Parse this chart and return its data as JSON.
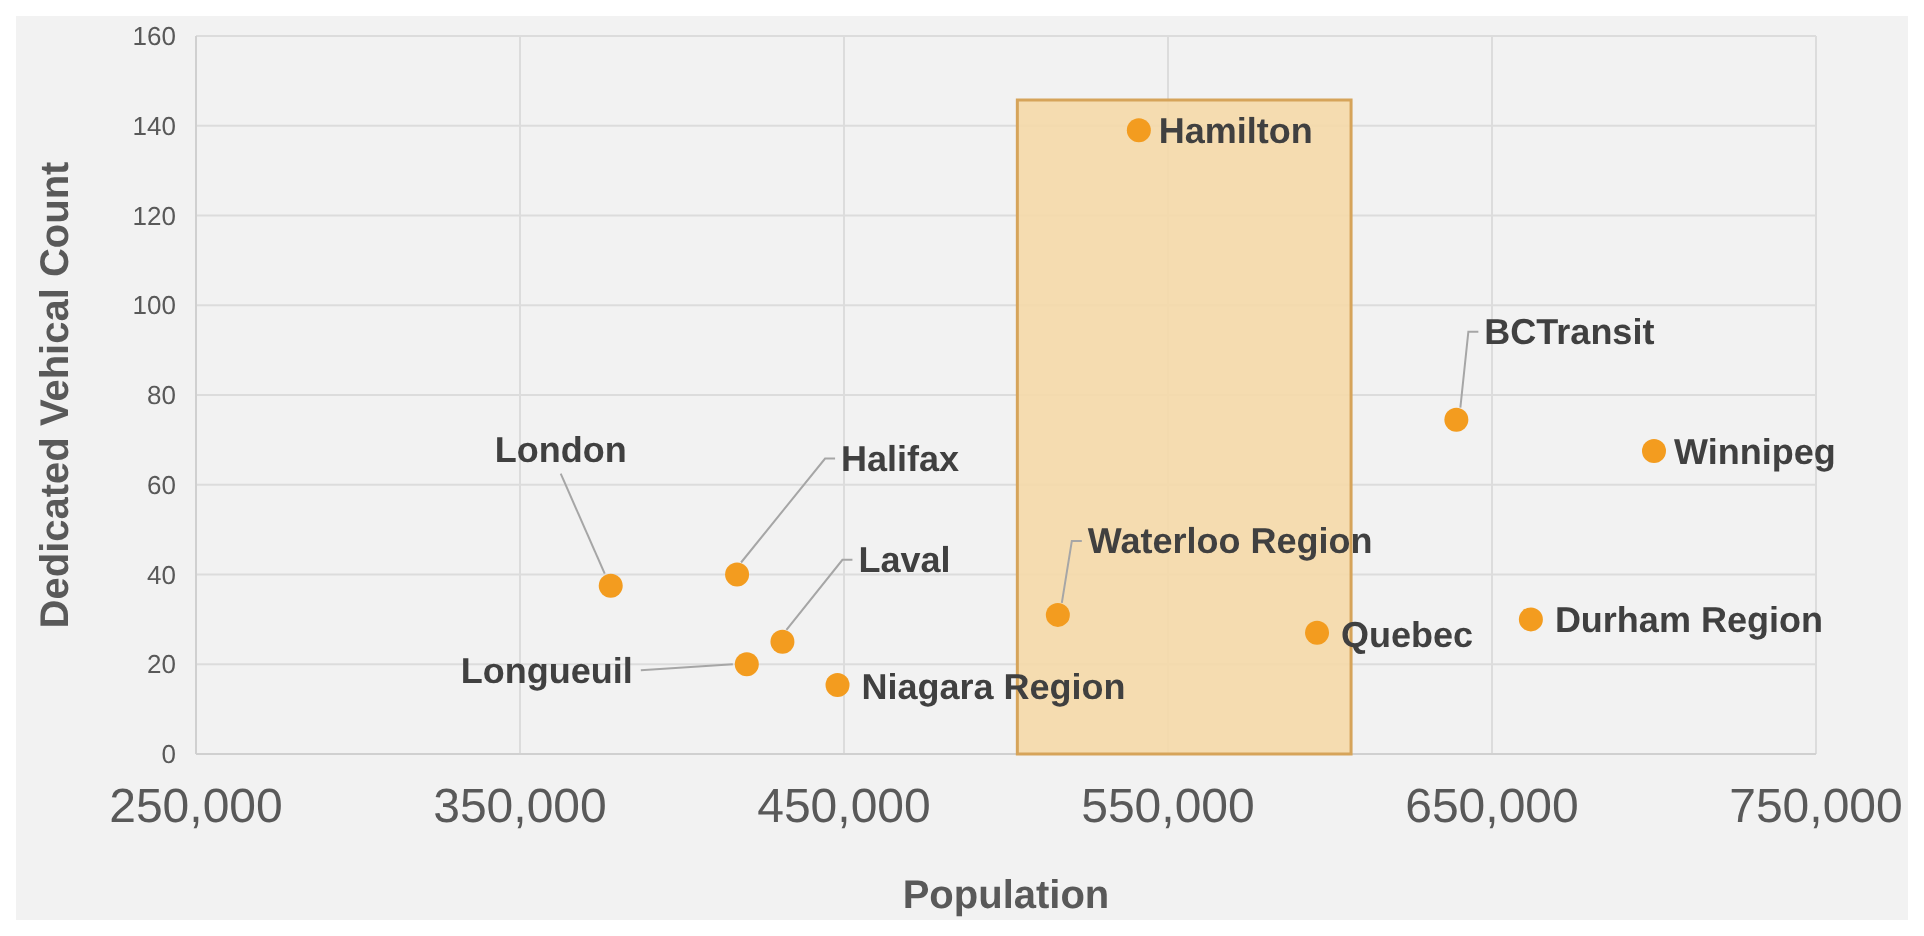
{
  "chart_data": {
    "type": "scatter",
    "xlabel": "Population",
    "ylabel": "Dedicated Vehical Count",
    "x": [
      378000,
      417000,
      431000,
      420000,
      448000,
      516000,
      541000,
      596000,
      639000,
      662000,
      700000
    ],
    "series": [
      {
        "color": "#f39c1f",
        "values": [
          37.5,
          40,
          25,
          20,
          15.4,
          31,
          139,
          27,
          74.5,
          30,
          67.5
        ]
      }
    ],
    "xlim": [
      250000,
      750000
    ],
    "xticks": [
      {
        "value": 250000,
        "label": "250,000"
      },
      {
        "value": 350000,
        "label": "350,000"
      },
      {
        "value": 450000,
        "label": "450,000"
      },
      {
        "value": 550000,
        "label": "550,000"
      },
      {
        "value": 650000,
        "label": "650,000"
      },
      {
        "value": 750000,
        "label": "750,000"
      }
    ],
    "ylim": [
      0,
      160
    ],
    "yticks": [
      0,
      20,
      40,
      60,
      80,
      100,
      120,
      140,
      160
    ],
    "grid": true,
    "marker": "circle",
    "bands": [
      {
        "axis": "x",
        "from": 503500,
        "to": 606500,
        "color": "#f5d9a8"
      }
    ],
    "annotations": [
      {
        "text": "London",
        "x": 378000,
        "y": 37.5
      },
      {
        "text": "Halifax",
        "x": 417000,
        "y": 40
      },
      {
        "text": "Laval",
        "x": 431000,
        "y": 25
      },
      {
        "text": "Longueuil",
        "x": 420000,
        "y": 20
      },
      {
        "text": "Niagara Region",
        "x": 448000,
        "y": 15.4
      },
      {
        "text": "Waterloo Region",
        "x": 516000,
        "y": 31
      },
      {
        "text": "Hamilton",
        "x": 541000,
        "y": 139
      },
      {
        "text": "Quebec",
        "x": 596000,
        "y": 27
      },
      {
        "text": "BCTransit",
        "x": 639000,
        "y": 74.5
      },
      {
        "text": "Durham Region",
        "x": 662000,
        "y": 30
      },
      {
        "text": "Winnipeg",
        "x": 700000,
        "y": 67.5
      }
    ]
  }
}
